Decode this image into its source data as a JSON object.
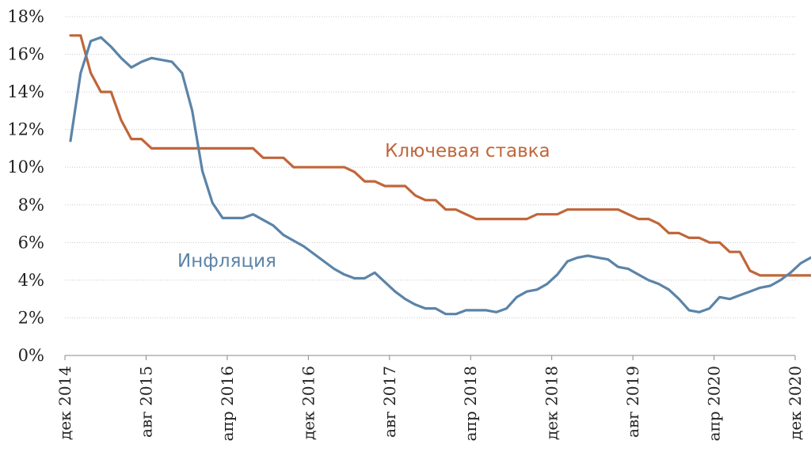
{
  "chart_data": {
    "type": "line",
    "title": "",
    "xlabel": "",
    "ylabel": "",
    "ylim": [
      0,
      18
    ],
    "y_ticks": [
      "0%",
      "2%",
      "4%",
      "6%",
      "8%",
      "10%",
      "12%",
      "14%",
      "16%",
      "18%"
    ],
    "x_ticks": [
      "дек 2014",
      "авг 2015",
      "апр 2016",
      "дек 2016",
      "авг 2017",
      "апр 2018",
      "дек 2018",
      "авг 2019",
      "апр 2020",
      "дек 2020"
    ],
    "grid": true,
    "legend": "inline labels",
    "series": [
      {
        "name": "Ключевая ставка",
        "color": "#C0663A",
        "label_position": "middle-right",
        "values": [
          17,
          17,
          15,
          14,
          14,
          12.5,
          11.5,
          11.5,
          11,
          11,
          11,
          11,
          11,
          11,
          11,
          11,
          11,
          11,
          11,
          10.5,
          10.5,
          10.5,
          10,
          10,
          10,
          10,
          10,
          10,
          9.75,
          9.25,
          9.25,
          9,
          9,
          9,
          8.5,
          8.25,
          8.25,
          7.75,
          7.75,
          7.5,
          7.25,
          7.25,
          7.25,
          7.25,
          7.25,
          7.25,
          7.5,
          7.5,
          7.5,
          7.75,
          7.75,
          7.75,
          7.75,
          7.75,
          7.75,
          7.5,
          7.25,
          7.25,
          7,
          6.5,
          6.5,
          6.25,
          6.25,
          6,
          6,
          5.5,
          5.5,
          4.5,
          4.25,
          4.25,
          4.25,
          4.25,
          4.25,
          4.25,
          4.25
        ]
      },
      {
        "name": "Инфляция",
        "color": "#5B84A8",
        "label_position": "middle-left",
        "values": [
          11.4,
          15,
          16.7,
          16.9,
          16.4,
          15.8,
          15.3,
          15.6,
          15.8,
          15.7,
          15.6,
          15,
          13,
          9.8,
          8.1,
          7.3,
          7.3,
          7.3,
          7.5,
          7.2,
          6.9,
          6.4,
          6.1,
          5.8,
          5.4,
          5,
          4.6,
          4.3,
          4.1,
          4.1,
          4.4,
          3.9,
          3.4,
          3,
          2.7,
          2.5,
          2.5,
          2.2,
          2.2,
          2.4,
          2.4,
          2.4,
          2.3,
          2.5,
          3.1,
          3.4,
          3.5,
          3.8,
          4.3,
          5,
          5.2,
          5.3,
          5.2,
          5.1,
          4.7,
          4.6,
          4.3,
          4,
          3.8,
          3.5,
          3,
          2.4,
          2.3,
          2.5,
          3.1,
          3,
          3.2,
          3.4,
          3.6,
          3.7,
          4,
          4.4,
          4.9,
          5.2
        ]
      }
    ]
  }
}
